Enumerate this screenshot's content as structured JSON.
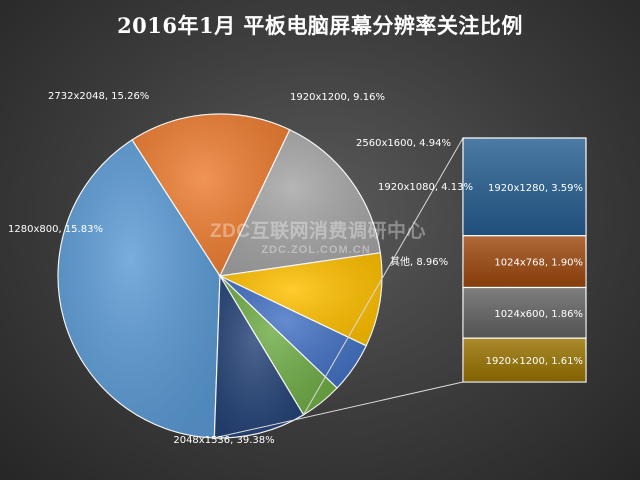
{
  "title": "2016年1月 平板电脑屏幕分辨率关注比例",
  "watermark": {
    "main": "ZDC互联网消费调研中心",
    "url": "ZDC.ZOL.COM.CN"
  },
  "colors": {
    "2048x1536": "#5b9bd5",
    "1280x800": "#ed7d31",
    "2732x2048": "#a5a5a5",
    "1920x1200": "#ffc000",
    "2560x1600": "#4472c4",
    "1920x1080": "#70ad47",
    "其他": "#264478",
    "1920x1280": "#255e91",
    "1024x768": "#9e480e",
    "1024x600": "#636363",
    "1920×1200": "#997300"
  },
  "chart_data": [
    {
      "type": "pie",
      "title": "2016年1月 平板电脑屏幕分辨率关注比例",
      "slices": [
        {
          "label": "2048x1536",
          "value": 39.38,
          "text": "2048x1536, 39.38%"
        },
        {
          "label": "1280x800",
          "value": 15.83,
          "text": "1280x800, 15.83%"
        },
        {
          "label": "2732x2048",
          "value": 15.26,
          "text": "2732x2048, 15.26%"
        },
        {
          "label": "1920x1200",
          "value": 9.16,
          "text": "1920x1200, 9.16%"
        },
        {
          "label": "2560x1600",
          "value": 4.94,
          "text": "2560x1600, 4.94%"
        },
        {
          "label": "1920x1080",
          "value": 4.13,
          "text": "1920x1080, 4.13%"
        },
        {
          "label": "其他",
          "value": 8.96,
          "text": "其他, 8.96%"
        }
      ]
    },
    {
      "type": "bar",
      "stacked": true,
      "breakdown_of": "其他",
      "segments": [
        {
          "label": "1920x1280",
          "value": 3.59,
          "text": "1920x1280, 3.59%"
        },
        {
          "label": "1024x768",
          "value": 1.9,
          "text": "1024x768, 1.90%"
        },
        {
          "label": "1024x600",
          "value": 1.86,
          "text": "1024x600, 1.86%"
        },
        {
          "label": "1920×1200",
          "value": 1.61,
          "text": "1920×1200, 1.61%"
        }
      ]
    }
  ]
}
